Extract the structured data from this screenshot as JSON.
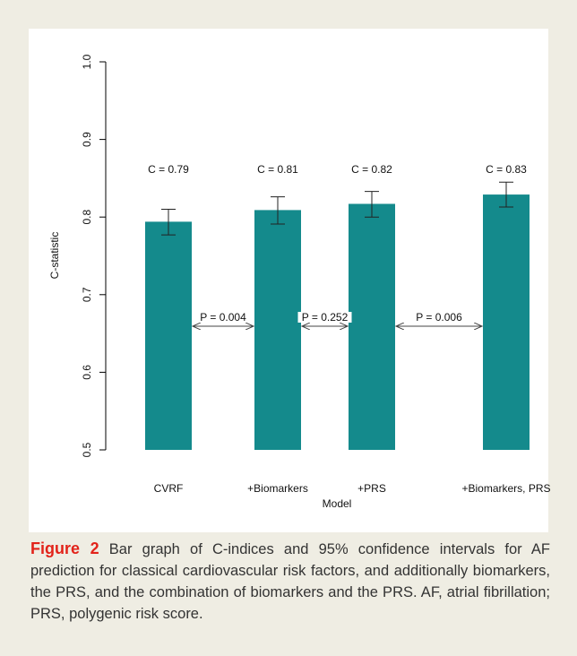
{
  "chart_data": {
    "type": "bar",
    "categories": [
      "CVRF",
      "+Biomarkers",
      "+PRS",
      "+Biomarkers, PRS"
    ],
    "values": [
      0.794,
      0.809,
      0.817,
      0.829
    ],
    "value_labels": [
      "C = 0.79",
      "C = 0.81",
      "C = 0.82",
      "C = 0.83"
    ],
    "ci_low": [
      0.777,
      0.791,
      0.8,
      0.813
    ],
    "ci_high": [
      0.81,
      0.826,
      0.833,
      0.845
    ],
    "color": "#148a8c",
    "ylim": [
      0.5,
      1.0
    ],
    "yticks": [
      0.5,
      0.6,
      0.7,
      0.8,
      0.9,
      {
        "value": 1.0,
        "label": "1.0"
      }
    ],
    "ylabel": "C-statistic",
    "xlabel": "Model",
    "annotations": [
      "P = 0.004",
      "P = 0.252",
      "P = 0.006"
    ]
  },
  "caption": {
    "label": "Figure 2",
    "text": "Bar graph of C-indices and 95% confidence intervals for AF prediction for classical cardiovascular risk factors, and additionally biomarkers, the PRS, and the combination of biomarkers and the PRS. AF, atrial fibrillation; PRS, polygenic risk score."
  }
}
